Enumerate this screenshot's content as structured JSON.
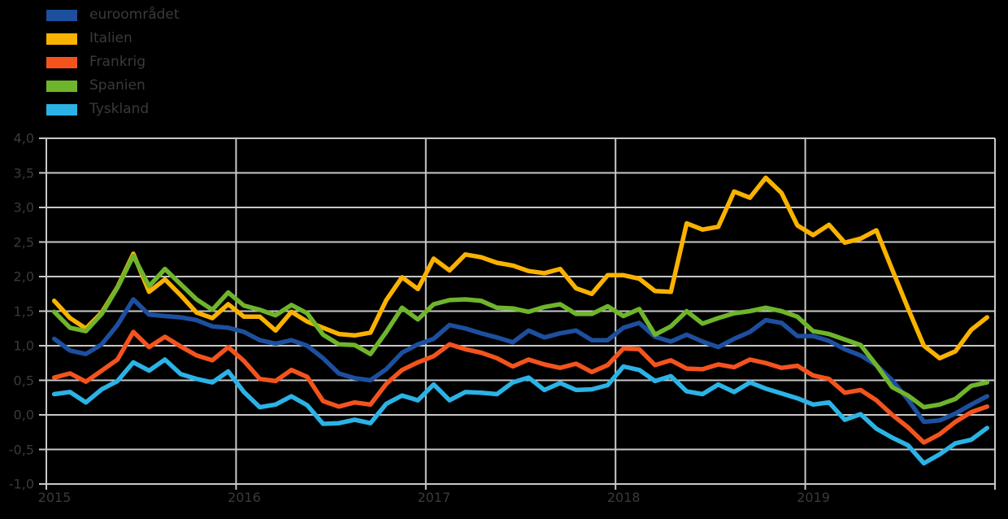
{
  "figure": {
    "background_color": "#000000",
    "plot_border_color": "#c8c8c8",
    "grid_color": "#c8c8c8",
    "text_color": "#3a3a3a"
  },
  "chart_data": {
    "type": "line",
    "title": "",
    "x_unit": "month",
    "x": [
      "2015-01",
      "2015-02",
      "2015-03",
      "2015-04",
      "2015-05",
      "2015-06",
      "2015-07",
      "2015-08",
      "2015-09",
      "2015-10",
      "2015-11",
      "2015-12",
      "2016-01",
      "2016-02",
      "2016-03",
      "2016-04",
      "2016-05",
      "2016-06",
      "2016-07",
      "2016-08",
      "2016-09",
      "2016-10",
      "2016-11",
      "2016-12",
      "2017-01",
      "2017-02",
      "2017-03",
      "2017-04",
      "2017-05",
      "2017-06",
      "2017-07",
      "2017-08",
      "2017-09",
      "2017-10",
      "2017-11",
      "2017-12",
      "2018-01",
      "2018-02",
      "2018-03",
      "2018-04",
      "2018-05",
      "2018-06",
      "2018-07",
      "2018-08",
      "2018-09",
      "2018-10",
      "2018-11",
      "2018-12",
      "2019-01",
      "2019-02",
      "2019-03",
      "2019-04",
      "2019-05",
      "2019-06",
      "2019-07",
      "2019-08",
      "2019-09",
      "2019-10",
      "2019-11",
      "2019-12"
    ],
    "series": [
      {
        "name": "euroområdet",
        "color": "#1d4f9f",
        "values": [
          1.1,
          0.93,
          0.88,
          1.02,
          1.3,
          1.67,
          1.45,
          1.43,
          1.41,
          1.37,
          1.28,
          1.26,
          1.2,
          1.08,
          1.03,
          1.08,
          1.0,
          0.82,
          0.6,
          0.53,
          0.5,
          0.66,
          0.9,
          1.02,
          1.1,
          1.3,
          1.25,
          1.18,
          1.12,
          1.05,
          1.22,
          1.12,
          1.18,
          1.22,
          1.08,
          1.08,
          1.26,
          1.33,
          1.13,
          1.06,
          1.16,
          1.06,
          0.98,
          1.1,
          1.2,
          1.37,
          1.33,
          1.14,
          1.14,
          1.07,
          0.95,
          0.86,
          0.72,
          0.5,
          0.22,
          -0.1,
          -0.08,
          0.02,
          0.15,
          0.27
        ]
      },
      {
        "name": "Italien",
        "color": "#f9b200",
        "values": [
          1.65,
          1.4,
          1.25,
          1.48,
          1.85,
          2.33,
          1.78,
          1.96,
          1.73,
          1.48,
          1.4,
          1.6,
          1.42,
          1.42,
          1.22,
          1.49,
          1.35,
          1.26,
          1.17,
          1.15,
          1.19,
          1.66,
          1.99,
          1.82,
          2.26,
          2.09,
          2.32,
          2.28,
          2.2,
          2.16,
          2.08,
          2.05,
          2.11,
          1.83,
          1.75,
          2.02,
          2.02,
          1.97,
          1.79,
          1.78,
          2.77,
          2.68,
          2.72,
          3.23,
          3.14,
          3.43,
          3.21,
          2.74,
          2.6,
          2.75,
          2.49,
          2.55,
          2.67,
          2.1,
          1.54,
          1.0,
          0.82,
          0.92,
          1.23,
          1.41
        ]
      },
      {
        "name": "Frankrig",
        "color": "#f4531e",
        "values": [
          0.54,
          0.6,
          0.48,
          0.64,
          0.8,
          1.2,
          0.98,
          1.13,
          0.99,
          0.86,
          0.79,
          0.98,
          0.78,
          0.52,
          0.49,
          0.65,
          0.55,
          0.2,
          0.12,
          0.18,
          0.15,
          0.45,
          0.65,
          0.76,
          0.85,
          1.02,
          0.95,
          0.9,
          0.82,
          0.7,
          0.8,
          0.73,
          0.68,
          0.74,
          0.62,
          0.72,
          0.96,
          0.95,
          0.72,
          0.79,
          0.67,
          0.66,
          0.73,
          0.69,
          0.8,
          0.75,
          0.68,
          0.71,
          0.57,
          0.52,
          0.32,
          0.36,
          0.21,
          0.0,
          -0.18,
          -0.4,
          -0.28,
          -0.1,
          0.04,
          0.12
        ]
      },
      {
        "name": "Spanien",
        "color": "#6fb52c",
        "values": [
          1.49,
          1.26,
          1.21,
          1.46,
          1.84,
          2.3,
          1.86,
          2.11,
          1.89,
          1.67,
          1.52,
          1.77,
          1.58,
          1.52,
          1.44,
          1.59,
          1.47,
          1.16,
          1.02,
          1.01,
          0.88,
          1.2,
          1.55,
          1.38,
          1.6,
          1.66,
          1.67,
          1.65,
          1.55,
          1.54,
          1.49,
          1.56,
          1.6,
          1.46,
          1.46,
          1.57,
          1.43,
          1.53,
          1.16,
          1.28,
          1.5,
          1.32,
          1.4,
          1.47,
          1.5,
          1.55,
          1.5,
          1.42,
          1.21,
          1.17,
          1.09,
          1.01,
          0.72,
          0.4,
          0.28,
          0.11,
          0.15,
          0.23,
          0.42,
          0.47
        ]
      },
      {
        "name": "Tyskland",
        "color": "#2bb3e6",
        "values": [
          0.3,
          0.33,
          0.18,
          0.37,
          0.49,
          0.76,
          0.64,
          0.8,
          0.59,
          0.52,
          0.47,
          0.63,
          0.33,
          0.11,
          0.15,
          0.27,
          0.14,
          -0.13,
          -0.12,
          -0.07,
          -0.12,
          0.16,
          0.28,
          0.21,
          0.44,
          0.21,
          0.33,
          0.32,
          0.3,
          0.47,
          0.54,
          0.36,
          0.46,
          0.36,
          0.37,
          0.43,
          0.7,
          0.65,
          0.49,
          0.56,
          0.34,
          0.3,
          0.44,
          0.33,
          0.47,
          0.38,
          0.31,
          0.24,
          0.15,
          0.18,
          -0.07,
          0.01,
          -0.2,
          -0.33,
          -0.44,
          -0.7,
          -0.57,
          -0.41,
          -0.36,
          -0.19
        ]
      }
    ],
    "ylim": [
      -1.0,
      4.0
    ],
    "ytick_step": 0.5,
    "y_tick_labels": [
      "4,0",
      "3,5",
      "3,0",
      "2,5",
      "2,0",
      "1,5",
      "1,0",
      "0,5",
      "0,0",
      "-0,5",
      "-1,0"
    ],
    "x_tick_labels": [
      "2015",
      "2016",
      "2017",
      "2018",
      "2019"
    ],
    "legend_position": "top-left",
    "grid": true
  }
}
